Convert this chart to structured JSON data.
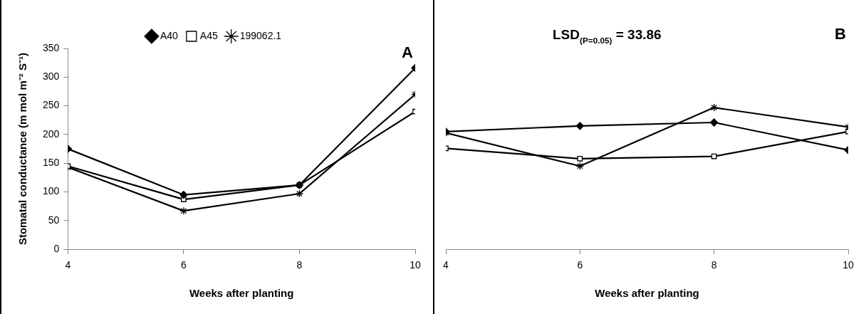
{
  "chart_data": [
    {
      "type": "line",
      "xlabel": "Weeks after planting",
      "ylabel": "Stomatal conductance (m mol m⁻² S⁻¹)",
      "x": [
        4,
        6,
        8,
        10
      ],
      "xlim": [
        4,
        10
      ],
      "xticks": [
        4,
        6,
        8,
        10
      ],
      "ylim": [
        0,
        350
      ],
      "yticks": [
        0,
        50,
        100,
        150,
        200,
        250,
        300,
        350
      ],
      "grid": false,
      "legend": "top",
      "line_style": "solid",
      "annotations": [
        "A"
      ],
      "series": [
        {
          "name": "A40",
          "color": "#000000",
          "marker": "diamond",
          "values": [
            175,
            95,
            112,
            316
          ]
        },
        {
          "name": "A45",
          "color": "#000000",
          "marker": "square",
          "values": [
            145,
            87,
            112,
            240
          ]
        },
        {
          "name": "199062.1",
          "color": "#000000",
          "marker": "cross",
          "values": [
            143,
            67,
            97,
            270
          ]
        }
      ]
    },
    {
      "type": "line",
      "xlabel": "Weeks after planting",
      "x": [
        4,
        6,
        8,
        10
      ],
      "xlim": [
        4,
        10
      ],
      "xticks": [
        4,
        6,
        8,
        10
      ],
      "ylim": [
        0,
        350
      ],
      "tick_labels": "x",
      "grid": false,
      "line_style": "solid",
      "annotations": [
        "B",
        "LSD$_{(P=0.05)}$ = 33.86"
      ],
      "series": [
        {
          "color": "#000000",
          "marker": "diamond",
          "values": [
            205,
            215,
            221,
            173
          ]
        },
        {
          "color": "#000000",
          "marker": "square",
          "values": [
            176,
            158,
            162,
            205
          ]
        },
        {
          "color": "#000000",
          "marker": "cross",
          "values": [
            203,
            145,
            247,
            213
          ]
        }
      ]
    }
  ]
}
